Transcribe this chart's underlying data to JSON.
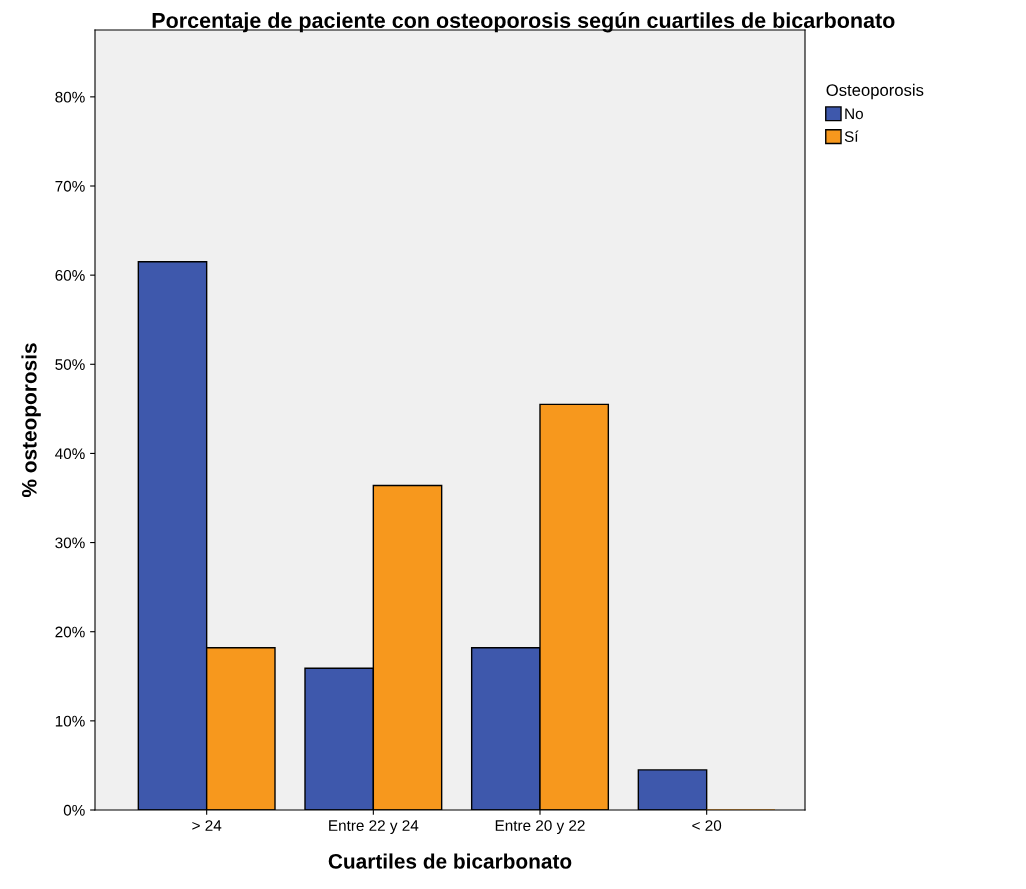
{
  "chart_data": {
    "type": "bar",
    "title": "Porcentaje de paciente con osteoporosis según cuartiles de bicarbonato",
    "xlabel": "Cuartiles de bicarbonato",
    "ylabel": "% osteoporosis",
    "legend_title": "Osteoporosis",
    "categories": [
      "> 24",
      "Entre 22 y 24",
      "Entre 20 y 22",
      "< 20"
    ],
    "series": [
      {
        "name": "No",
        "color": "#3e58ac",
        "values": [
          61.5,
          15.9,
          18.2,
          4.5
        ]
      },
      {
        "name": "Sí",
        "color": "#f7981d",
        "values": [
          18.2,
          36.4,
          45.5,
          0
        ]
      }
    ],
    "ylim": [
      0,
      87.5
    ],
    "yticks": [
      {
        "value": 0,
        "label": "0%"
      },
      {
        "value": 10,
        "label": "10%"
      },
      {
        "value": 20,
        "label": "20%"
      },
      {
        "value": 30,
        "label": "30%"
      },
      {
        "value": 40,
        "label": "40%"
      },
      {
        "value": 50,
        "label": "50%"
      },
      {
        "value": 60,
        "label": "60%"
      },
      {
        "value": 70,
        "label": "70%"
      },
      {
        "value": 80,
        "label": "80%"
      }
    ],
    "legend": "top right",
    "grid": false
  }
}
